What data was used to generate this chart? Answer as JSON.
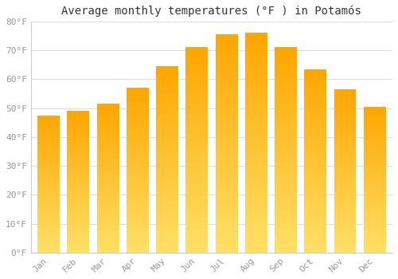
{
  "title": "Average monthly temperatures (°F ) in Potamós",
  "months": [
    "Jan",
    "Feb",
    "Mar",
    "Apr",
    "May",
    "Jun",
    "Jul",
    "Aug",
    "Sep",
    "Oct",
    "Nov",
    "Dec"
  ],
  "values": [
    47.5,
    49.0,
    51.5,
    57.0,
    64.5,
    71.0,
    75.5,
    76.0,
    71.0,
    63.5,
    56.5,
    50.5
  ],
  "bar_color_top": "#FFA500",
  "bar_color_bottom": "#FFE066",
  "background_color": "#FFFFFF",
  "grid_color": "#DDDDDD",
  "yticks": [
    0,
    10,
    20,
    30,
    40,
    50,
    60,
    70,
    80
  ],
  "ylim": [
    0,
    80
  ],
  "title_fontsize": 10,
  "tick_fontsize": 8,
  "tick_color": "#999999",
  "title_color": "#333333"
}
